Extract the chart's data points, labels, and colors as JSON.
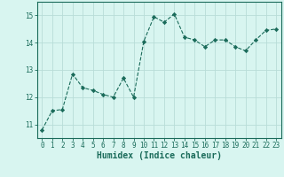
{
  "x": [
    0,
    1,
    2,
    3,
    4,
    5,
    6,
    7,
    8,
    9,
    10,
    11,
    12,
    13,
    14,
    15,
    16,
    17,
    18,
    19,
    20,
    21,
    22,
    23
  ],
  "y": [
    10.8,
    11.5,
    11.55,
    12.85,
    12.35,
    12.25,
    12.1,
    12.0,
    12.7,
    12.0,
    14.05,
    14.95,
    14.75,
    15.05,
    14.2,
    14.1,
    13.85,
    14.1,
    14.1,
    13.85,
    13.7,
    14.1,
    14.45,
    14.5
  ],
  "line_color": "#1a6b5a",
  "marker": "D",
  "marker_size": 2.2,
  "bg_color": "#d8f5f0",
  "grid_color": "#b8ddd8",
  "xlabel": "Humidex (Indice chaleur)",
  "xlim": [
    -0.5,
    23.5
  ],
  "ylim": [
    10.5,
    15.5
  ],
  "yticks": [
    11,
    12,
    13,
    14,
    15
  ],
  "xticks": [
    0,
    1,
    2,
    3,
    4,
    5,
    6,
    7,
    8,
    9,
    10,
    11,
    12,
    13,
    14,
    15,
    16,
    17,
    18,
    19,
    20,
    21,
    22,
    23
  ],
  "tick_label_fontsize": 5.5,
  "xlabel_fontsize": 7
}
